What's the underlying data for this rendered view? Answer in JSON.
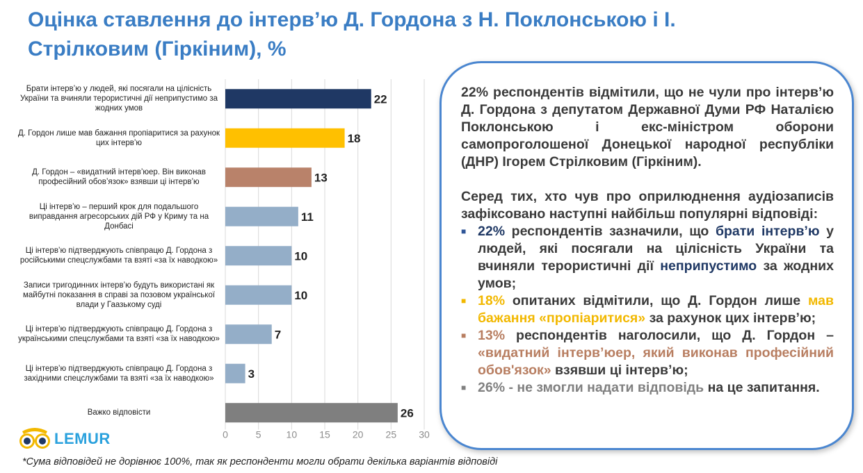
{
  "title": "Оцінка ставлення до інтерв’ю Д. Гордона з Н. Поклонською і І. Стрілковим (Гіркіним), %",
  "chart_data": {
    "type": "bar",
    "orientation": "horizontal",
    "categories": [
      "Брати інтерв’ю у людей, які посягали на цілісність України та вчиняли терористичні дії неприпустимо за жодних умов",
      "Д. Гордон лише мав бажання пропіаритися за рахунок цих інтерв’ю",
      "Д. Гордон – «видатний інтерв’юер. Він виконав професійний обов’язок» взявши ці інтерв’ю",
      "Ці інтерв’ю – перший крок для подальшого виправдання агресорських дій РФ у Криму та на Донбасі",
      "Ці інтерв’ю підтверджують співпрацю Д. Гордона з російськими спецслужбами та взяті «за їх наводкою»",
      "Записи тригодинних інтерв’ю будуть використані як майбутні показання в справі за позовом української влади у Гаазькому суді",
      "Ці інтерв’ю підтверджують співпрацю Д. Гордона з українськими спецслужбами та взяті «за їх наводкою»",
      "Ці інтерв’ю підтверджують співпрацю Д. Гордона з західними спецслужбами та взяті «за їх наводкою»",
      "Важко відповісти"
    ],
    "values": [
      22,
      18,
      13,
      11,
      10,
      10,
      7,
      3,
      26
    ],
    "colors": [
      "#1f3864",
      "#ffc000",
      "#b9826a",
      "#94aec8",
      "#94aec8",
      "#94aec8",
      "#94aec8",
      "#94aec8",
      "#7f7f7f"
    ],
    "xlim": [
      0,
      30
    ],
    "xticks": [
      0,
      5,
      10,
      15,
      20,
      25,
      30
    ],
    "grid": true,
    "legend": "none"
  },
  "logo": {
    "text": "LEMUR"
  },
  "footnote": "*Сума відповідей не дорівнює 100%, так як респонденти могли обрати декілька варіантів відповіді",
  "info": {
    "para1": "22% респондентів відмітили, що не чули про інтерв’ю Д. Гордона з депутатом Державної Думи РФ Наталією Поклонською і екс-міністром оборони самопроголошеної Донецької народної республіки (ДНР) Ігорем Стрілковим (Гіркіним).",
    "para2": "Серед тих, хто чув про оприлюднення аудіозаписів зафіксовано наступні найбільш популярні відповіді:",
    "bullet_mark": "■",
    "item1": {
      "pct": "22%",
      "t1": " респондентів зазначили, що ",
      "hl1": "брати інтерв’ю",
      "t2": " у людей, які посягали на цілісність України та вчиняли терористичні дії ",
      "hl2": "неприпустимо",
      "t3": " за жодних умов;"
    },
    "item2": {
      "pct": "18%",
      "t1": " опитаних відмітили, що Д. Гордон лише ",
      "hl1": "мав бажання «пропіаритися»",
      "t2": " за рахунок цих інтерв’ю;"
    },
    "item3": {
      "pct": "13%",
      "t1": " респондентів наголосили, що Д. Гордон – ",
      "hl1": "«видатний інтерв’юер, який виконав професійний обов'язок»",
      "t2": " взявши ці інтерв’ю;"
    },
    "item4": {
      "pct": "26% - не змогли надати відповідь",
      "t1": " на це запитання."
    }
  }
}
